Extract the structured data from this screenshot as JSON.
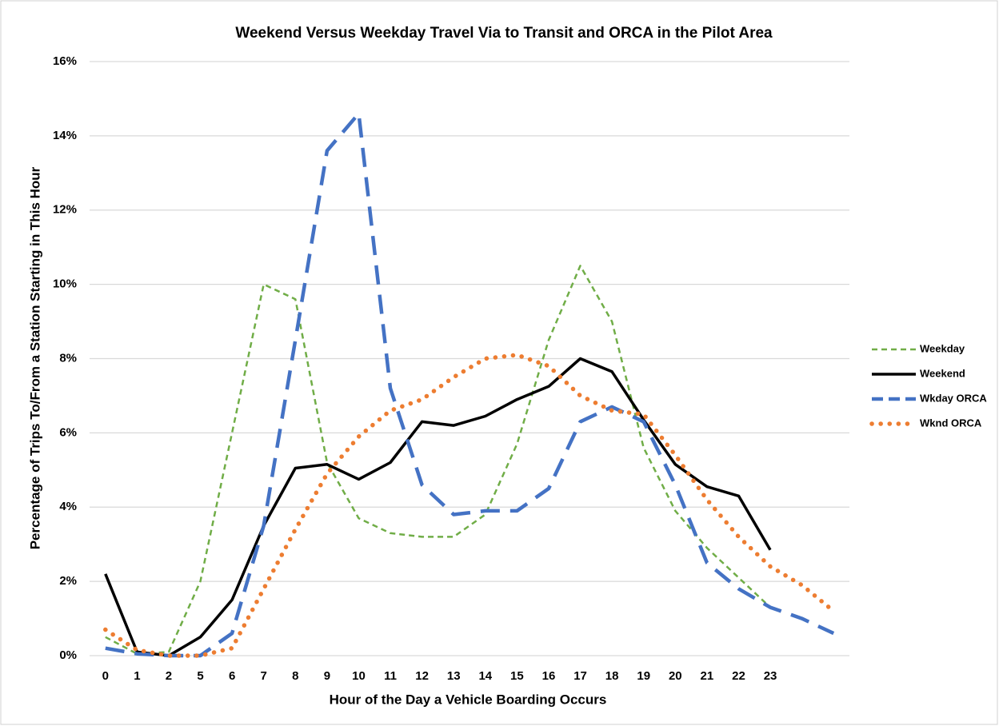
{
  "chart_data": {
    "type": "line",
    "title": "Weekend Versus Weekday Travel  Via to Transit and ORCA in the Pilot Area",
    "x_label": "Hour of the Day a Vehicle Boarding Occurs",
    "y_label": "Percentage of Trips To/From a Station Starting in This Hour",
    "categories": [
      "0",
      "1",
      "2",
      "5",
      "6",
      "7",
      "8",
      "9",
      "10",
      "11",
      "12",
      "13",
      "14",
      "15",
      "16",
      "17",
      "18",
      "19",
      "20",
      "21",
      "22",
      "23",
      null,
      null
    ],
    "ylim": [
      0,
      16
    ],
    "yticks": [
      {
        "value": 0,
        "label": "0%"
      },
      {
        "value": 2,
        "label": "2%"
      },
      {
        "value": 4,
        "label": "4%"
      },
      {
        "value": 6,
        "label": "6%"
      },
      {
        "value": 8,
        "label": "8%"
      },
      {
        "value": 10,
        "label": "10%"
      },
      {
        "value": 12,
        "label": "12%"
      },
      {
        "value": 14,
        "label": "14%"
      },
      {
        "value": 16,
        "label": "16%"
      }
    ],
    "grid": true,
    "legend": "right",
    "series": [
      {
        "name": "Weekday",
        "color": "#70ad47",
        "dash": "short-dash",
        "values": [
          0.5,
          0.05,
          0.1,
          2.0,
          6.0,
          10.0,
          9.6,
          5.2,
          3.7,
          3.3,
          3.2,
          3.2,
          3.8,
          5.7,
          8.5,
          10.5,
          9.0,
          5.6,
          3.9,
          2.9,
          2.1,
          1.3,
          null,
          null
        ]
      },
      {
        "name": "Weekend",
        "color": "#000000",
        "dash": "solid",
        "values": [
          2.2,
          0.1,
          0.0,
          0.5,
          1.5,
          3.5,
          5.05,
          5.15,
          4.75,
          5.2,
          6.3,
          6.2,
          6.45,
          6.9,
          7.25,
          8.0,
          7.65,
          6.35,
          5.15,
          4.55,
          4.3,
          2.85,
          null,
          null
        ]
      },
      {
        "name": "Wkday ORCA",
        "color": "#4472c4",
        "dash": "long-dash",
        "values": [
          0.2,
          0.05,
          0.0,
          0.0,
          0.6,
          3.5,
          8.5,
          13.6,
          14.6,
          7.2,
          4.6,
          3.8,
          3.9,
          3.9,
          4.5,
          6.3,
          6.7,
          6.3,
          4.6,
          2.5,
          1.8,
          1.3,
          1.0,
          0.6
        ]
      },
      {
        "name": "Wknd ORCA",
        "color": "#ed7d31",
        "dash": "dot",
        "values": [
          0.7,
          0.15,
          0.0,
          0.0,
          0.2,
          1.8,
          3.4,
          4.9,
          5.9,
          6.6,
          6.9,
          7.5,
          8.0,
          8.1,
          7.8,
          7.0,
          6.6,
          6.5,
          5.4,
          4.2,
          3.2,
          2.4,
          1.9,
          1.2
        ]
      }
    ]
  }
}
